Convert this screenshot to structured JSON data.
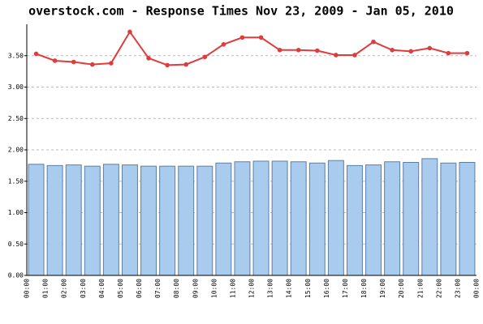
{
  "chart_data": {
    "type": "bar",
    "title": "overstock.com - Response Times Nov 23, 2009 - Jan 05, 2010",
    "x_tick_labels": [
      "00:00",
      "01:00",
      "02:00",
      "03:00",
      "04:00",
      "05:00",
      "06:00",
      "07:00",
      "08:00",
      "09:00",
      "10:00",
      "11:00",
      "12:00",
      "13:00",
      "14:00",
      "15:00",
      "16:00",
      "17:00",
      "18:00",
      "19:00",
      "20:00",
      "21:00",
      "22:00",
      "23:00",
      "00:00"
    ],
    "series": [
      {
        "type": "bar",
        "color": "#a8cbee",
        "values": [
          1.77,
          1.75,
          1.76,
          1.74,
          1.77,
          1.76,
          1.74,
          1.74,
          1.74,
          1.74,
          1.79,
          1.81,
          1.82,
          1.82,
          1.81,
          1.79,
          1.83,
          1.75,
          1.76,
          1.81,
          1.8,
          1.86,
          1.79,
          1.8
        ]
      },
      {
        "type": "line",
        "color": "#e03c3c",
        "values": [
          3.53,
          3.42,
          3.4,
          3.36,
          3.38,
          3.88,
          3.46,
          3.35,
          3.36,
          3.48,
          3.68,
          3.79,
          3.79,
          3.59,
          3.59,
          3.58,
          3.51,
          3.51,
          3.72,
          3.59,
          3.57,
          3.62,
          3.54,
          3.54
        ]
      }
    ],
    "ylim": [
      0,
      4
    ],
    "yticks": [
      {
        "value": 0,
        "label": "0.00"
      },
      {
        "value": 0.5,
        "label": "0.50"
      },
      {
        "value": 1,
        "label": "1.00"
      },
      {
        "value": 1.5,
        "label": "1.50"
      },
      {
        "value": 2,
        "label": "2.00"
      },
      {
        "value": 2.5,
        "label": "2.50"
      },
      {
        "value": 3,
        "label": "3.00"
      },
      {
        "value": 3.5,
        "label": "3.50"
      }
    ],
    "grid": true
  }
}
